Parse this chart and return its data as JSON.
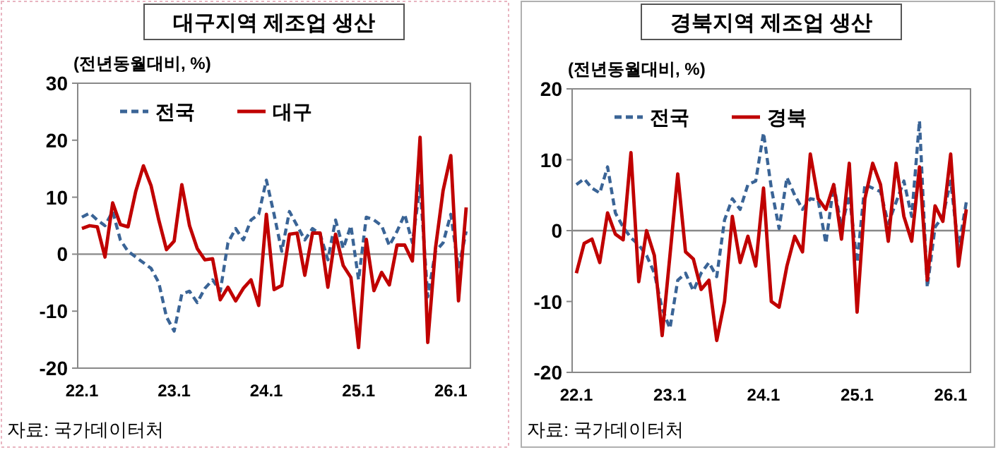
{
  "chart_data": [
    {
      "type": "line",
      "title": "대구지역 제조업 생산",
      "ylabel": "(전년동월대비, %)",
      "annotations": [
        "자료: 국가데이터처"
      ],
      "categories": [
        "22.1",
        null,
        null,
        null,
        null,
        null,
        null,
        null,
        null,
        null,
        null,
        null,
        "23.1",
        null,
        null,
        null,
        null,
        null,
        null,
        null,
        null,
        null,
        null,
        null,
        "24.1",
        null,
        null,
        null,
        null,
        null,
        null,
        null,
        null,
        null,
        null,
        null,
        "25.1",
        null,
        null,
        null,
        null,
        null,
        null,
        null,
        null,
        null,
        null,
        null,
        "26.1",
        null,
        null
      ],
      "series": [
        {
          "name": "전국",
          "color": "#3a6496",
          "line_style": "dashed",
          "values": [
            6.5,
            7.2,
            6,
            5,
            7.5,
            2.5,
            0.5,
            -0.5,
            -1.5,
            -2.5,
            -5,
            -11,
            -13.5,
            -7,
            -6.5,
            -8.5,
            -6,
            -4.5,
            -6.5,
            2,
            4.5,
            2.5,
            6,
            7,
            13,
            7,
            0.5,
            7.5,
            5,
            2.5,
            4.5,
            3.5,
            -1,
            6,
            1,
            5,
            -4.5,
            6.5,
            6,
            5,
            1.5,
            4,
            7,
            2,
            12,
            -7.5,
            0.5,
            2,
            7,
            -2.5,
            4
          ]
        },
        {
          "name": "대구",
          "color": "#c00000",
          "line_style": "solid",
          "values": [
            4.5,
            5,
            4.8,
            -0.5,
            9,
            5.2,
            4.8,
            11,
            15.5,
            12,
            6,
            0.8,
            2.3,
            12.2,
            5,
            1,
            -1,
            -0.8,
            -8,
            -5.8,
            -8.2,
            -6,
            -4.5,
            -9,
            7,
            -6.2,
            -5.5,
            3.5,
            3.7,
            -3.7,
            3.7,
            3.7,
            -5.8,
            3.5,
            -2,
            -4.1,
            -16.4,
            2.6,
            -6.4,
            -3.2,
            -5.4,
            1.6,
            1.6,
            -1.2,
            20.5,
            -15.5,
            1,
            11.2,
            17.3,
            -8.2,
            8.2
          ]
        }
      ],
      "ylim": [
        -20,
        30
      ],
      "yticks": [
        -20,
        -10,
        0,
        10,
        20,
        30
      ],
      "legend": "top"
    },
    {
      "type": "line",
      "title": "경북지역 제조업 생산",
      "ylabel": "(전년동월대비, %)",
      "annotations": [
        "자료: 국가데이터처"
      ],
      "categories": [
        "22.1",
        null,
        null,
        null,
        null,
        null,
        null,
        null,
        null,
        null,
        null,
        null,
        "23.1",
        null,
        null,
        null,
        null,
        null,
        null,
        null,
        null,
        null,
        null,
        null,
        "24.1",
        null,
        null,
        null,
        null,
        null,
        null,
        null,
        null,
        null,
        null,
        null,
        "25.1",
        null,
        null,
        null,
        null,
        null,
        null,
        null,
        null,
        null,
        null,
        null,
        "26.1",
        null,
        null
      ],
      "series": [
        {
          "name": "전국",
          "color": "#3a6496",
          "line_style": "dashed",
          "values": [
            6.5,
            7.3,
            6,
            5.3,
            9,
            2.5,
            0.5,
            -1,
            -2,
            -3.5,
            -6,
            -11,
            -13.8,
            -7,
            -6,
            -8.5,
            -6,
            -4.5,
            -6.5,
            1.5,
            4.5,
            3,
            6.5,
            7,
            13.8,
            6,
            0.3,
            7.5,
            5,
            3,
            4.5,
            4.3,
            -1.8,
            6.5,
            0.5,
            5,
            -4.5,
            6.5,
            6,
            5.5,
            1,
            4,
            7,
            2,
            15.5,
            -8,
            0.5,
            2,
            7,
            -2.5,
            4
          ]
        },
        {
          "name": "경북",
          "color": "#c00000",
          "line_style": "solid",
          "values": [
            -6,
            -1.8,
            -1.2,
            -4.5,
            2.5,
            -0.5,
            -1.3,
            11,
            -7.2,
            0,
            -3.5,
            -14.8,
            -3.5,
            8,
            -3,
            -4,
            -8.3,
            -7,
            -15.5,
            -10,
            2,
            -4.5,
            -0.8,
            -5,
            6,
            -10,
            -10.8,
            -5,
            -0.8,
            -3,
            10.8,
            4.5,
            3,
            6.5,
            -1.2,
            9.5,
            -11.5,
            4.5,
            9.5,
            6.5,
            -1.5,
            9.5,
            2,
            -1.5,
            9,
            -7,
            3.5,
            1.3,
            10.8,
            -5,
            3
          ]
        }
      ],
      "ylim": [
        -20,
        20
      ],
      "yticks": [
        -20,
        -10,
        0,
        10,
        20
      ],
      "legend": "top"
    }
  ]
}
